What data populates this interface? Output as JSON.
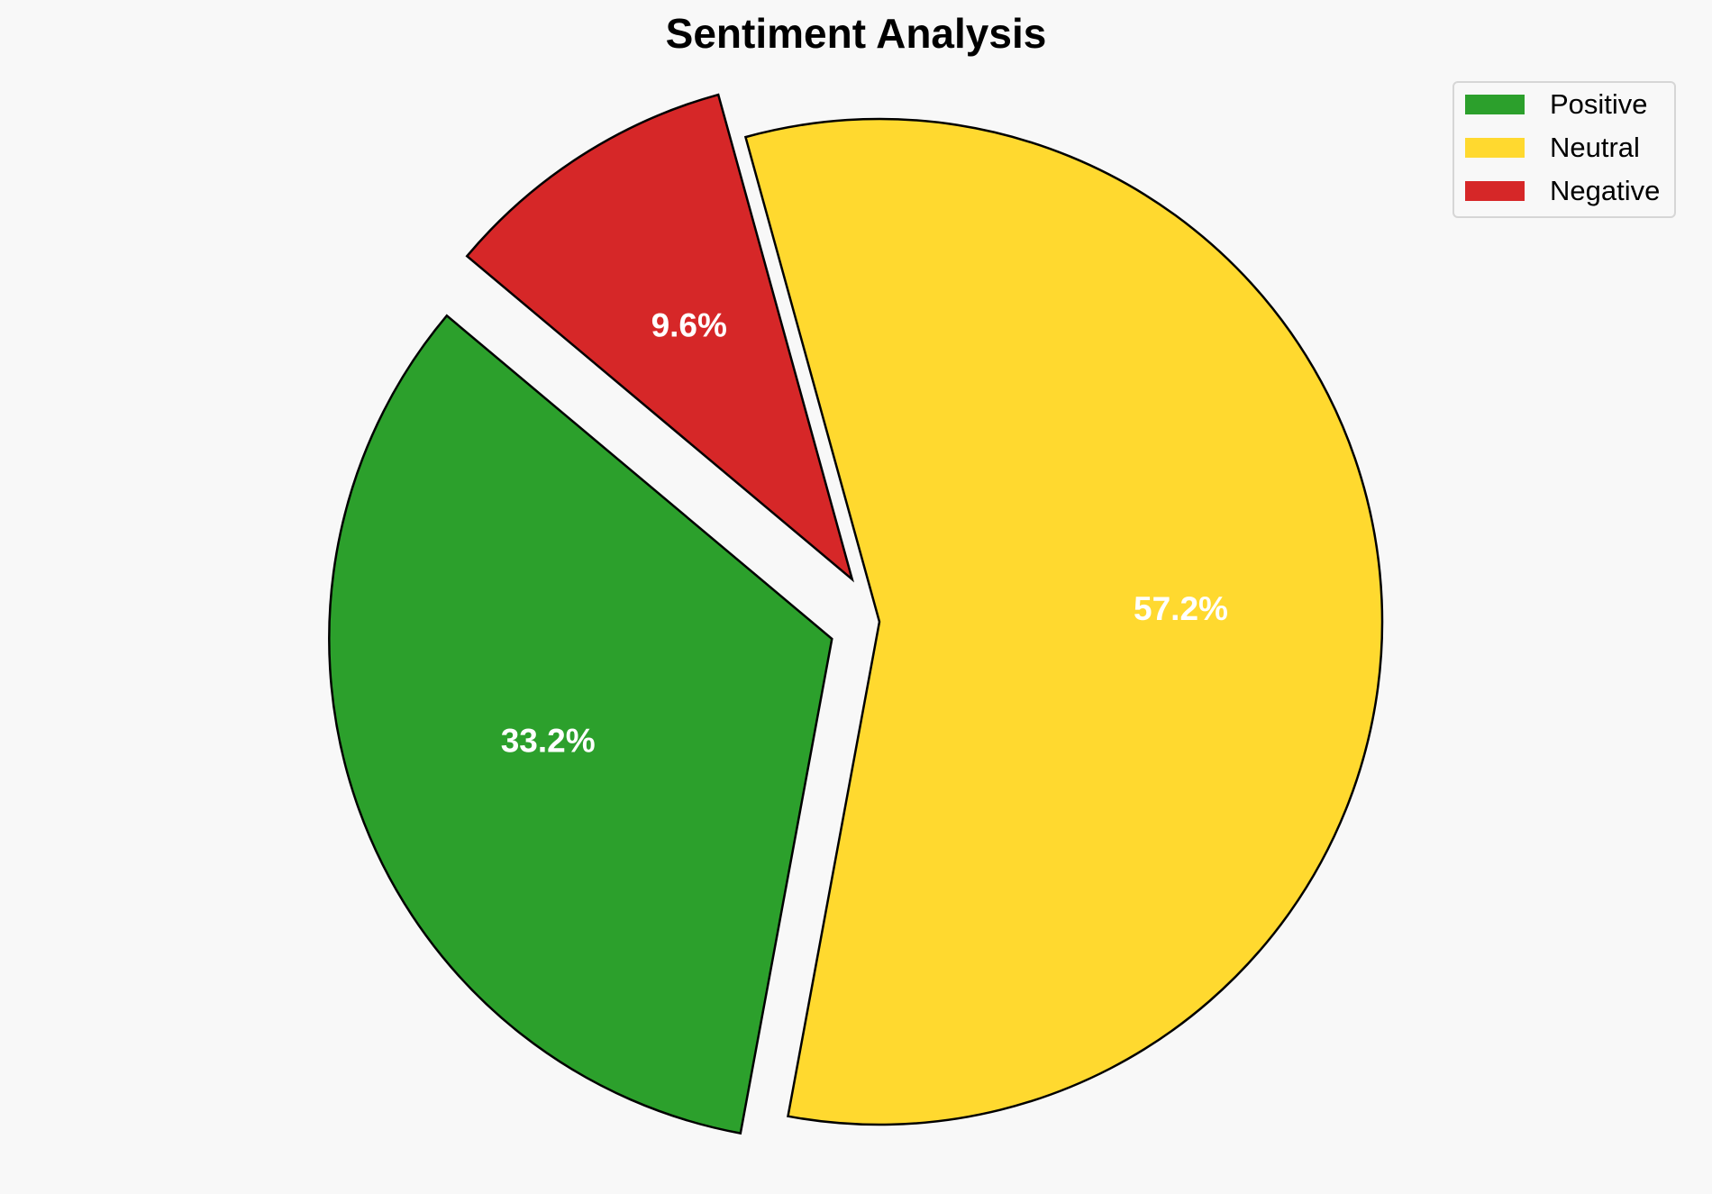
{
  "chart_data": {
    "type": "pie",
    "title": "Sentiment Analysis",
    "labels": [
      "Positive",
      "Neutral",
      "Negative"
    ],
    "values": [
      33.2,
      57.2,
      9.6
    ],
    "value_labels": [
      "33.2%",
      "57.2%",
      "9.6%"
    ],
    "colors": [
      "#2ca02c",
      "#ffd92f",
      "#d62728"
    ],
    "exploded": [
      true,
      false,
      true
    ],
    "start_angle_deg": 140,
    "direction": "counterclockwise",
    "edge_color": "#000000",
    "legend": {
      "placement": "top-right",
      "entries": [
        "Positive",
        "Neutral",
        "Negative"
      ]
    }
  }
}
